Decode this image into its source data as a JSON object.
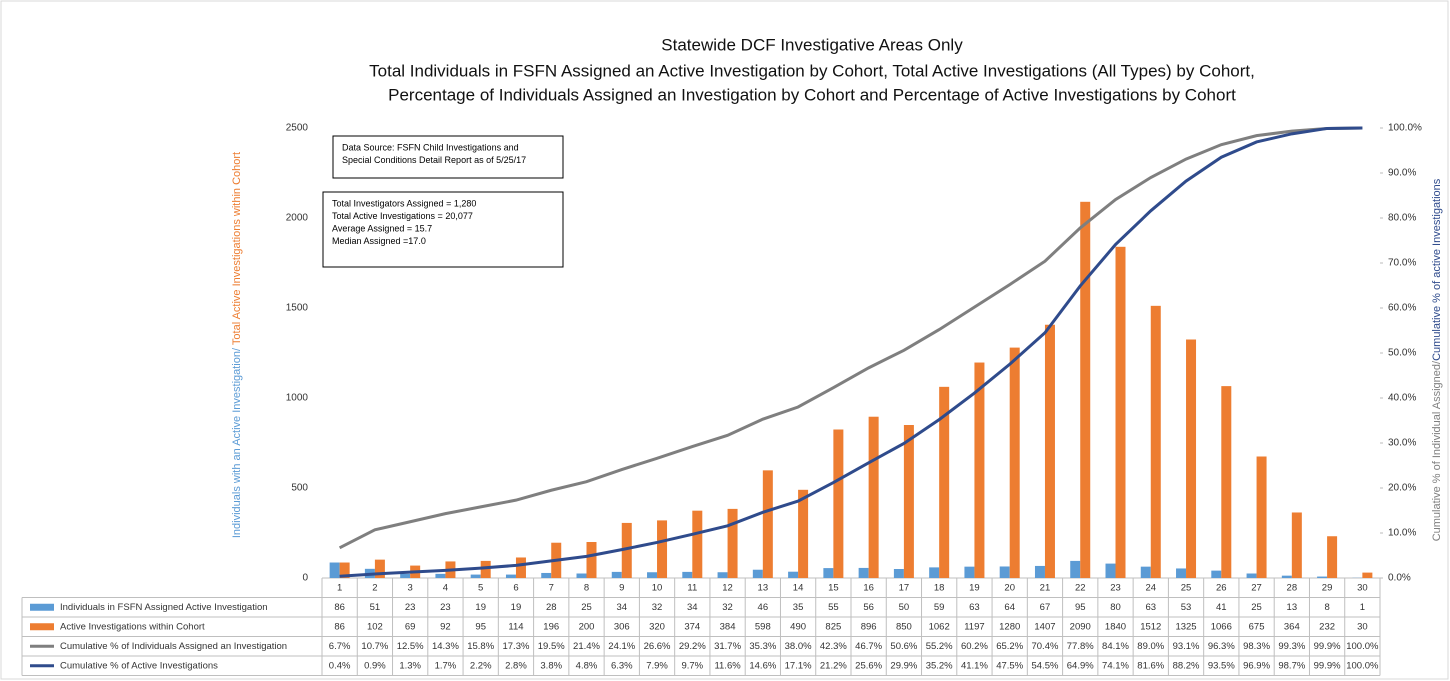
{
  "chart_data": {
    "type": "bar",
    "title": [
      "Statewide DCF Investigative Areas Only",
      "Total Individuals in FSFN Assigned an Active Investigation by Cohort, Total Active Investigations (All Types) by Cohort,",
      "Percentage of Individuals Assigned an Investigation by Cohort and Percentage of Active Investigations by Cohort"
    ],
    "y_label": [
      "Individuals with an Active Investigation/",
      " Total Active Investigations within Cohort"
    ],
    "y2_label": [
      "Cumulative % of Individual Assigned/",
      "Cumulative % of active Investigations"
    ],
    "annotations": [
      [
        "Data Source: FSFN Child Investigations and",
        "Special Conditions Detail Report as of 5/25/17"
      ],
      [
        "Total Investigators Assigned = 1,280",
        "Total Active Investigations = 20,077",
        "Average Assigned = 15.7",
        "Median Assigned =17.0"
      ]
    ],
    "categories": [
      "1",
      "2",
      "3",
      "4",
      "5",
      "6",
      "7",
      "8",
      "9",
      "10",
      "11",
      "12",
      "13",
      "14",
      "15",
      "16",
      "17",
      "18",
      "19",
      "20",
      "21",
      "22",
      "23",
      "24",
      "25",
      "26",
      "27",
      "28",
      "29",
      "30"
    ],
    "ylim": [
      0,
      2500
    ],
    "yticks": [
      0,
      500,
      1000,
      1500,
      2000,
      2500
    ],
    "y2lim": [
      0,
      100
    ],
    "y2ticks": [
      {
        "value": 0,
        "label": "0.0%"
      },
      {
        "value": 10,
        "label": "10.0%"
      },
      {
        "value": 20,
        "label": "20.0%"
      },
      {
        "value": 30,
        "label": "30.0%"
      },
      {
        "value": 40,
        "label": "40.0%"
      },
      {
        "value": 50,
        "label": "50.0%"
      },
      {
        "value": 60,
        "label": "60.0%"
      },
      {
        "value": 70,
        "label": "70.0%"
      },
      {
        "value": 80,
        "label": "80.0%"
      },
      {
        "value": 90,
        "label": "90.0%"
      },
      {
        "value": 100,
        "label": "100.0%"
      }
    ],
    "grid": false,
    "series": [
      {
        "name": "Individuals in FSFN  Assigned Active Investigation",
        "type": "bar",
        "color": "#5b9bd5",
        "values": [
          86,
          51,
          23,
          23,
          19,
          19,
          28,
          25,
          34,
          32,
          34,
          32,
          46,
          35,
          55,
          56,
          50,
          59,
          63,
          64,
          67,
          95,
          80,
          63,
          53,
          41,
          25,
          13,
          8,
          1
        ]
      },
      {
        "name": "Active Investigations within Cohort",
        "type": "bar",
        "color": "#ed7d31",
        "values": [
          86,
          102,
          69,
          92,
          95,
          114,
          196,
          200,
          306,
          320,
          374,
          384,
          598,
          490,
          825,
          896,
          850,
          1062,
          1197,
          1280,
          1407,
          2090,
          1840,
          1512,
          1325,
          1066,
          675,
          364,
          232,
          30
        ]
      },
      {
        "name": "Cumulative % of Individuals Assigned an Investigation",
        "type": "line",
        "axis": "y2",
        "color": "#7f7f7f",
        "values": [
          6.7,
          10.7,
          12.5,
          14.3,
          15.8,
          17.3,
          19.5,
          21.4,
          24.1,
          26.6,
          29.2,
          31.7,
          35.3,
          38.0,
          42.3,
          46.7,
          50.6,
          55.2,
          60.2,
          65.2,
          70.4,
          77.8,
          84.1,
          89.0,
          93.1,
          96.3,
          98.3,
          99.3,
          99.9,
          100.0
        ],
        "value_labels": [
          "6.7%",
          "10.7%",
          "12.5%",
          "14.3%",
          "15.8%",
          "17.3%",
          "19.5%",
          "21.4%",
          "24.1%",
          "26.6%",
          "29.2%",
          "31.7%",
          "35.3%",
          "38.0%",
          "42.3%",
          "46.7%",
          "50.6%",
          "55.2%",
          "60.2%",
          "65.2%",
          "70.4%",
          "77.8%",
          "84.1%",
          "89.0%",
          "93.1%",
          "96.3%",
          "98.3%",
          "99.3%",
          "99.9%",
          "100.0%"
        ]
      },
      {
        "name": "Cumulative % of Active Investigations",
        "type": "line",
        "axis": "y2",
        "color": "#2f4b8c",
        "values": [
          0.4,
          0.9,
          1.3,
          1.7,
          2.2,
          2.8,
          3.8,
          4.8,
          6.3,
          7.9,
          9.7,
          11.6,
          14.6,
          17.1,
          21.2,
          25.6,
          29.9,
          35.2,
          41.1,
          47.5,
          54.5,
          64.9,
          74.1,
          81.6,
          88.2,
          93.5,
          96.9,
          98.7,
          99.9,
          100.0
        ],
        "value_labels": [
          "0.4%",
          "0.9%",
          "1.3%",
          "1.7%",
          "2.2%",
          "2.8%",
          "3.8%",
          "4.8%",
          "6.3%",
          "7.9%",
          "9.7%",
          "11.6%",
          "14.6%",
          "17.1%",
          "21.2%",
          "25.6%",
          "29.9%",
          "35.2%",
          "41.1%",
          "47.5%",
          "54.5%",
          "64.9%",
          "74.1%",
          "81.6%",
          "88.2%",
          "93.5%",
          "96.9%",
          "98.7%",
          "99.9%",
          "100.0%"
        ]
      }
    ]
  }
}
